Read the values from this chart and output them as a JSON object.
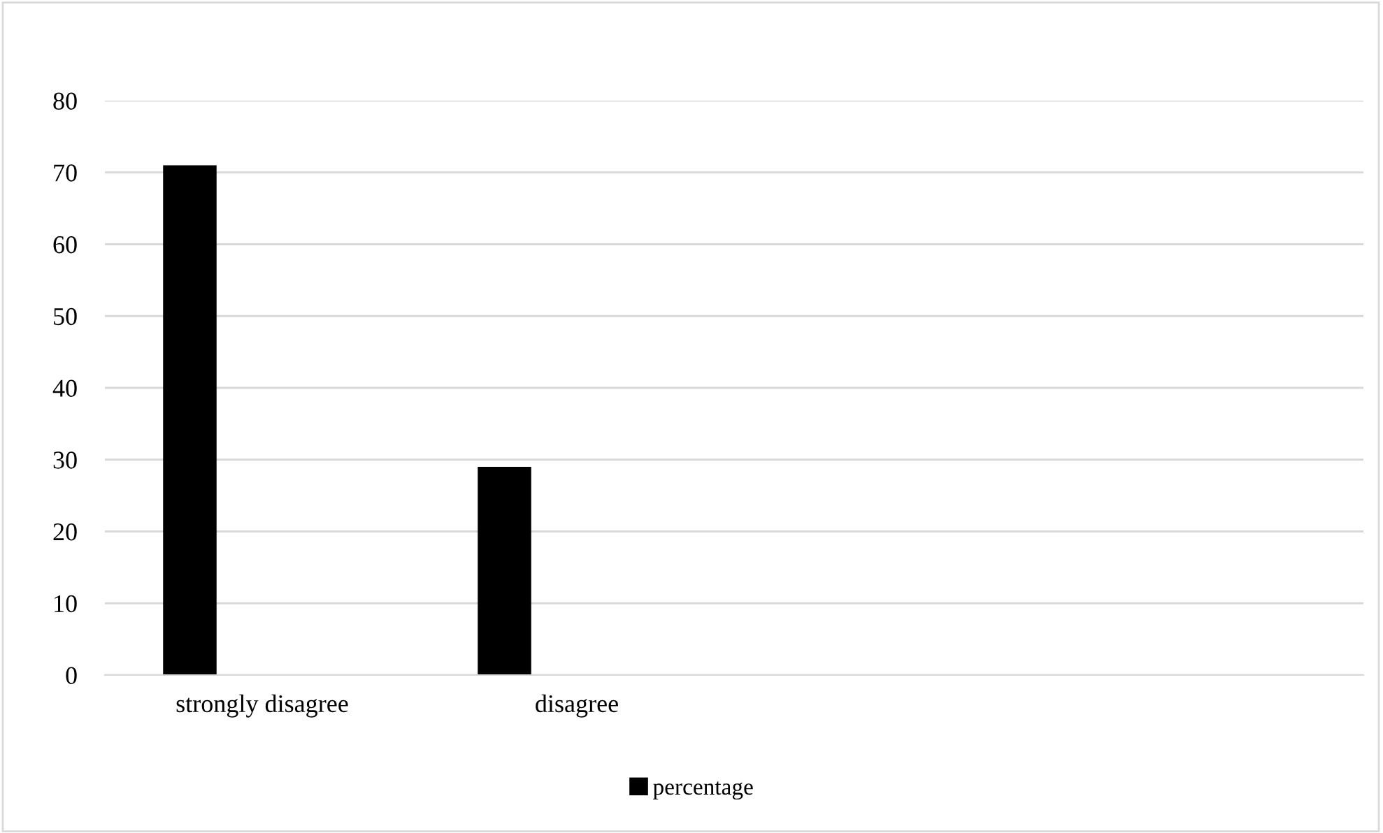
{
  "chart_data": {
    "type": "bar",
    "categories": [
      "strongly disagree",
      "disagree",
      null,
      null
    ],
    "series": [
      {
        "name": "percentage",
        "color": "#000000",
        "values": [
          71,
          29,
          null,
          null
        ]
      }
    ],
    "ylim": [
      0,
      80
    ],
    "yticks": [
      0,
      10,
      20,
      30,
      40,
      50,
      60,
      70,
      80
    ],
    "grid": "y",
    "legend": "bottom"
  }
}
